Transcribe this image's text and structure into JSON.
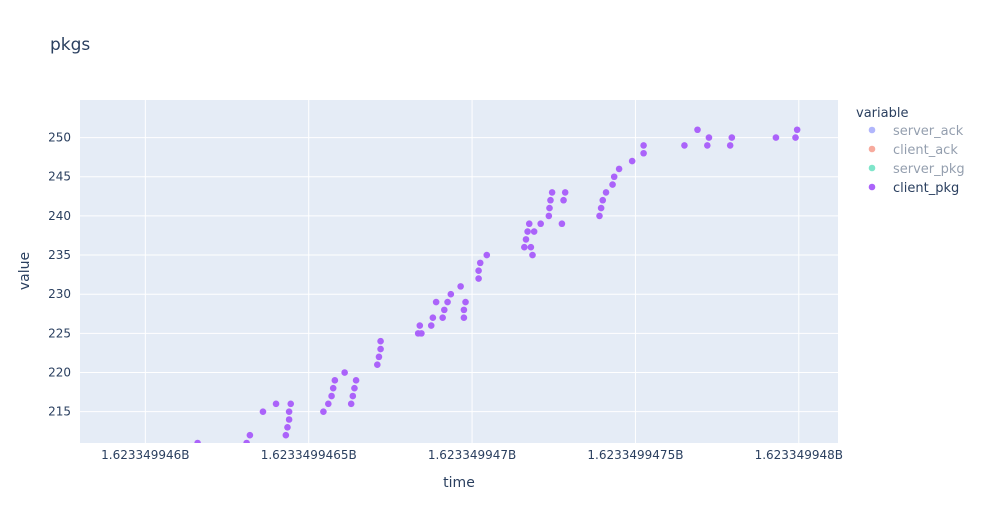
{
  "chart_data": {
    "type": "scatter",
    "title": "pkgs",
    "xlabel": "time",
    "ylabel": "value",
    "xlim": [
      1623349945.8,
      1623349948.12
    ],
    "ylim": [
      211,
      254.8
    ],
    "x_ticks": [
      {
        "value": 1623349946.0,
        "label": "1.623349946B"
      },
      {
        "value": 1623349946.5,
        "label": "1.6233499465B"
      },
      {
        "value": 1623349947.0,
        "label": "1.623349947B"
      },
      {
        "value": 1623349947.5,
        "label": "1.6233499475B"
      },
      {
        "value": 1623349948.0,
        "label": "1.623349948B"
      }
    ],
    "y_ticks": [
      {
        "value": 215,
        "label": "215"
      },
      {
        "value": 220,
        "label": "220"
      },
      {
        "value": 225,
        "label": "225"
      },
      {
        "value": 230,
        "label": "230"
      },
      {
        "value": 235,
        "label": "235"
      },
      {
        "value": 240,
        "label": "240"
      },
      {
        "value": 245,
        "label": "245"
      },
      {
        "value": 250,
        "label": "250"
      }
    ],
    "grid": true,
    "legend": {
      "title": "variable",
      "position": "right",
      "entries": [
        {
          "name": "server_ack",
          "color": "#636efa",
          "visible": false
        },
        {
          "name": "client_ack",
          "color": "#ef553b",
          "visible": false
        },
        {
          "name": "server_pkg",
          "color": "#00cc96",
          "visible": false
        },
        {
          "name": "client_pkg",
          "color": "#ab63fa",
          "visible": true
        }
      ]
    },
    "series": [
      {
        "name": "client_pkg",
        "color": "#ab63fa",
        "points": [
          [
            1623349946.16,
            211
          ],
          [
            1623349946.31,
            211
          ],
          [
            1623349946.32,
            212
          ],
          [
            1623349946.36,
            215
          ],
          [
            1623349946.4,
            216
          ],
          [
            1623349946.43,
            212
          ],
          [
            1623349946.435,
            213
          ],
          [
            1623349946.44,
            214
          ],
          [
            1623349946.44,
            215
          ],
          [
            1623349946.445,
            216
          ],
          [
            1623349946.545,
            215
          ],
          [
            1623349946.56,
            216
          ],
          [
            1623349946.57,
            217
          ],
          [
            1623349946.575,
            218
          ],
          [
            1623349946.58,
            219
          ],
          [
            1623349946.61,
            220
          ],
          [
            1623349946.63,
            216
          ],
          [
            1623349946.635,
            217
          ],
          [
            1623349946.64,
            218
          ],
          [
            1623349946.645,
            219
          ],
          [
            1623349946.71,
            221
          ],
          [
            1623349946.715,
            222
          ],
          [
            1623349946.72,
            223
          ],
          [
            1623349946.72,
            224
          ],
          [
            1623349946.835,
            225
          ],
          [
            1623349946.84,
            226
          ],
          [
            1623349946.845,
            225
          ],
          [
            1623349946.875,
            226
          ],
          [
            1623349946.88,
            227
          ],
          [
            1623349946.89,
            229
          ],
          [
            1623349946.91,
            227
          ],
          [
            1623349946.915,
            228
          ],
          [
            1623349946.925,
            229
          ],
          [
            1623349946.935,
            230
          ],
          [
            1623349946.965,
            231
          ],
          [
            1623349946.975,
            227
          ],
          [
            1623349946.975,
            228
          ],
          [
            1623349946.98,
            229
          ],
          [
            1623349947.02,
            232
          ],
          [
            1623349947.02,
            233
          ],
          [
            1623349947.025,
            234
          ],
          [
            1623349947.045,
            235
          ],
          [
            1623349947.16,
            236
          ],
          [
            1623349947.165,
            237
          ],
          [
            1623349947.17,
            238
          ],
          [
            1623349947.175,
            239
          ],
          [
            1623349947.18,
            236
          ],
          [
            1623349947.185,
            235
          ],
          [
            1623349947.19,
            238
          ],
          [
            1623349947.21,
            239
          ],
          [
            1623349947.235,
            240
          ],
          [
            1623349947.237,
            241
          ],
          [
            1623349947.24,
            242
          ],
          [
            1623349947.245,
            243
          ],
          [
            1623349947.275,
            239
          ],
          [
            1623349947.28,
            242
          ],
          [
            1623349947.285,
            243
          ],
          [
            1623349947.39,
            240
          ],
          [
            1623349947.395,
            241
          ],
          [
            1623349947.4,
            242
          ],
          [
            1623349947.41,
            243
          ],
          [
            1623349947.43,
            244
          ],
          [
            1623349947.435,
            245
          ],
          [
            1623349947.45,
            246
          ],
          [
            1623349947.49,
            247
          ],
          [
            1623349947.525,
            248
          ],
          [
            1623349947.525,
            249
          ],
          [
            1623349947.65,
            249
          ],
          [
            1623349947.69,
            251
          ],
          [
            1623349947.72,
            249
          ],
          [
            1623349947.725,
            250
          ],
          [
            1623349947.79,
            249
          ],
          [
            1623349947.795,
            250
          ],
          [
            1623349947.93,
            250
          ],
          [
            1623349947.99,
            250
          ],
          [
            1623349947.995,
            251
          ]
        ]
      }
    ]
  }
}
